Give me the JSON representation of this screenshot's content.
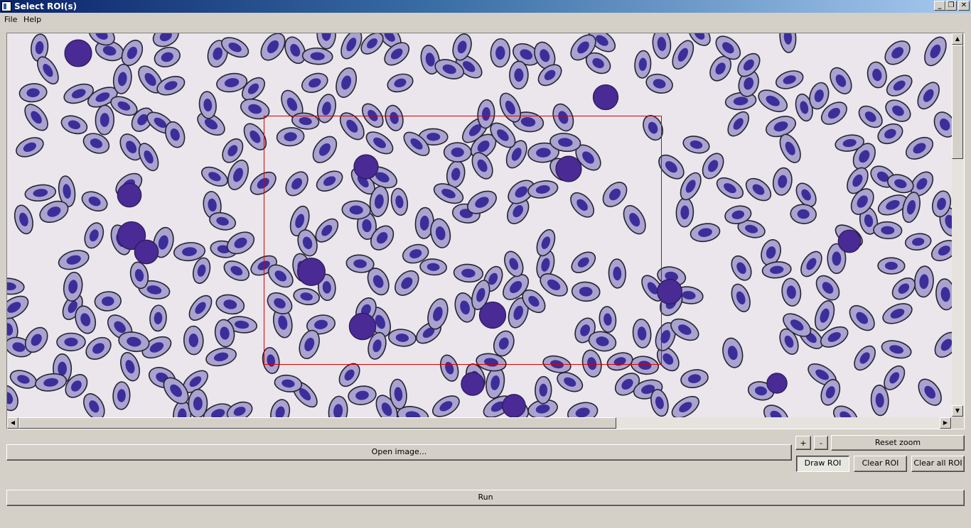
{
  "window": {
    "title": "Select ROI(s)"
  },
  "menubar": {
    "items": [
      "File",
      "Help"
    ]
  },
  "window_buttons": {
    "minimize": "_",
    "maximize": "❐",
    "close": "✕"
  },
  "scroll": {
    "up": "▲",
    "down": "▼",
    "left": "◀",
    "right": "▶"
  },
  "zoom": {
    "plus": "+",
    "minus": "-",
    "reset": "Reset zoom"
  },
  "actions": {
    "open_image": "Open image...",
    "draw_roi": "Draw ROI",
    "clear_roi": "Clear ROI",
    "clear_all_roi": "Clear all ROI",
    "run": "Run"
  },
  "colors": {
    "roi_outline": "#d80000",
    "cell_fill": "#aaa3cf",
    "nucleus": "#3c2e9a",
    "background": "#ebe6ec"
  }
}
